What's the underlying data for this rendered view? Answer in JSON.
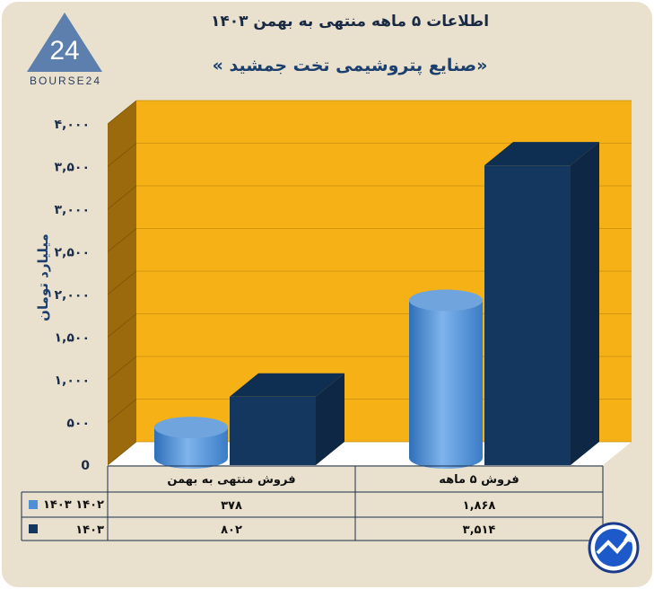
{
  "header": {
    "title": "اطلاعات ۵ ماهه منتهی به بهمن ۱۴۰۳",
    "subtitle": "«صنایع پتروشیمی تخت جمشید »",
    "logo_text": "BOURSE24",
    "logo_mark": "24"
  },
  "colors": {
    "series_1402": "#4f8fd8",
    "series_1403": "#13375f",
    "plot_bg": "#f5b116",
    "wall_side": "#9a6a0c",
    "floor": "#ffffff"
  },
  "chart_data": {
    "type": "bar",
    "title": "«صنایع پتروشیمی تخت جمشید »",
    "ylabel": "میلیارد تومان",
    "ylim": [
      0,
      4000
    ],
    "yticks": [
      0,
      500,
      1000,
      1500,
      2000,
      2500,
      3000,
      3500,
      4000
    ],
    "ytick_labels": [
      "0",
      "۵۰۰",
      "۱,۰۰۰",
      "۱,۵۰۰",
      "۲,۰۰۰",
      "۲,۵۰۰",
      "۳,۰۰۰",
      "۳,۵۰۰",
      "۴,۰۰۰"
    ],
    "categories": [
      "فروش منتهی به  بهمن",
      "فروش ۵  ماهه"
    ],
    "series": [
      {
        "name": "۱۴۰۲ ۱۴۰۳",
        "shape": "cylinder",
        "values": [
          378,
          1868
        ],
        "value_labels": [
          "۳۷۸",
          "۱,۸۶۸"
        ]
      },
      {
        "name": "۱۴۰۳",
        "shape": "box",
        "values": [
          802,
          3514
        ],
        "value_labels": [
          "۸۰۲",
          "۳,۵۱۴"
        ]
      }
    ],
    "grid": true,
    "legend": "table-left"
  }
}
